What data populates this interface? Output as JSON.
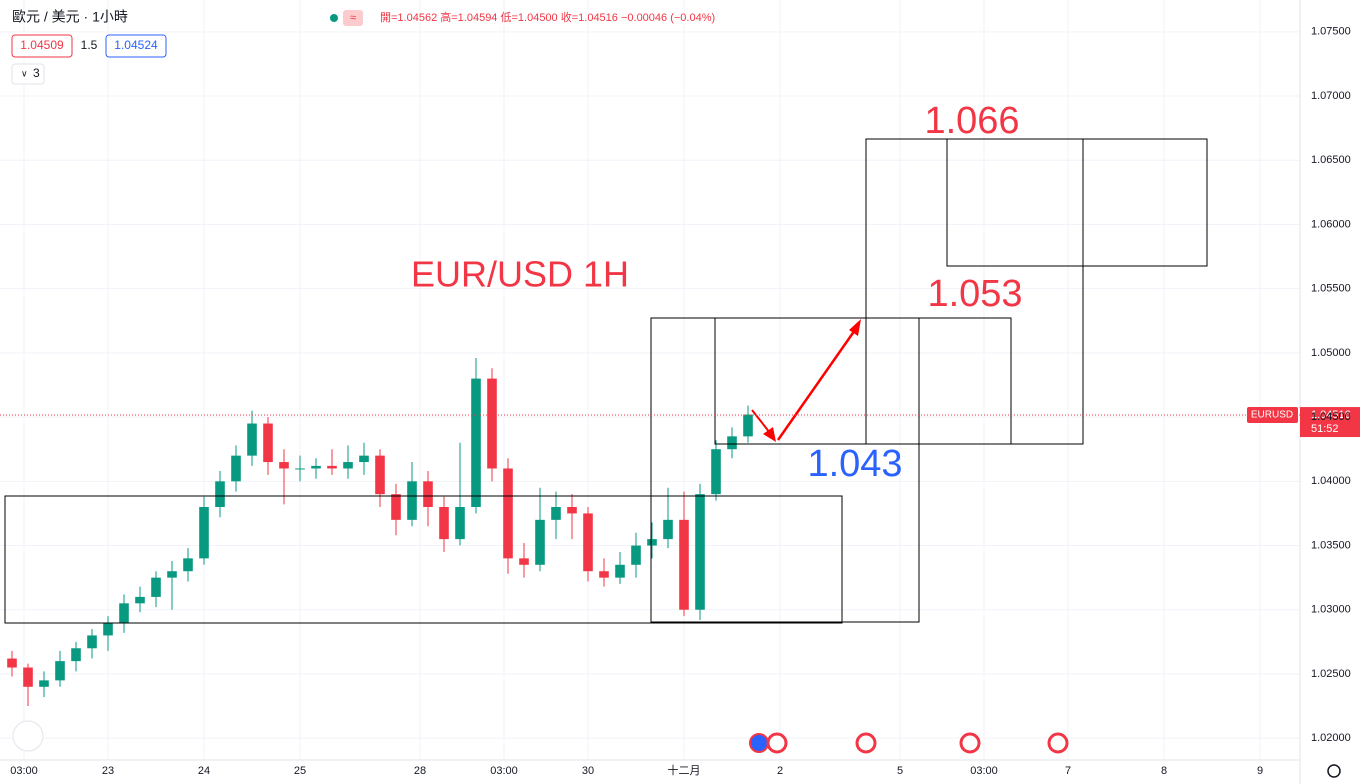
{
  "header": {
    "symbol": "歐元 / 美元 · 1小時",
    "ohlc": "開=1.04562 高=1.04594 低=1.04500 收=1.04516 −0.00046 (−0.04%)",
    "bid": "1.04509",
    "spread": "1.5",
    "ask": "1.04524",
    "indicators": "3"
  },
  "chart_data": {
    "type": "candlestick",
    "title": "EUR/USD 1H",
    "annotations": [
      {
        "text": "1.066",
        "color": "#f23645"
      },
      {
        "text": "1.053",
        "color": "#f23645"
      },
      {
        "text": "1.043",
        "color": "#2962ff"
      }
    ],
    "symbol_tag": "EURUSD",
    "last_price": 1.04516,
    "countdown": "51:52",
    "up_color": "#089981",
    "down_color": "#f23645",
    "x": [
      0,
      4,
      8,
      12,
      16,
      20,
      24,
      28,
      32,
      36,
      40,
      44,
      48,
      52,
      56,
      60,
      64,
      68,
      72,
      76,
      80,
      84,
      88,
      92,
      96,
      100,
      104,
      108,
      112,
      116,
      120,
      124,
      128,
      132,
      136,
      140,
      144,
      148,
      152,
      156,
      160,
      164,
      168,
      172,
      176,
      180,
      184
    ],
    "open": [
      1.0262,
      1.0255,
      1.024,
      1.0245,
      1.026,
      1.027,
      1.028,
      1.029,
      1.0305,
      1.031,
      1.0325,
      1.033,
      1.034,
      1.038,
      1.04,
      1.042,
      1.0445,
      1.0415,
      1.041,
      1.041,
      1.0412,
      1.041,
      1.0415,
      1.042,
      1.039,
      1.037,
      1.04,
      1.038,
      1.0355,
      1.038,
      1.048,
      1.041,
      1.034,
      1.0335,
      1.037,
      1.038,
      1.0375,
      1.033,
      1.0325,
      1.0335,
      1.035,
      1.0355,
      1.037,
      1.03,
      1.039,
      1.0425,
      1.0435
    ],
    "high": [
      1.0268,
      1.0258,
      1.0252,
      1.0268,
      1.0275,
      1.0285,
      1.0295,
      1.0312,
      1.0318,
      1.033,
      1.0338,
      1.0348,
      1.0388,
      1.0408,
      1.0428,
      1.0455,
      1.045,
      1.0425,
      1.042,
      1.0418,
      1.0425,
      1.0428,
      1.043,
      1.0425,
      1.0398,
      1.0415,
      1.0408,
      1.0388,
      1.043,
      1.0496,
      1.0488,
      1.0418,
      1.0352,
      1.0395,
      1.0392,
      1.039,
      1.038,
      1.034,
      1.0345,
      1.036,
      1.0368,
      1.0395,
      1.0392,
      1.0398,
      1.0432,
      1.0442,
      1.0459
    ],
    "low": [
      1.0248,
      1.0225,
      1.0232,
      1.024,
      1.0252,
      1.0262,
      1.0268,
      1.0282,
      1.0298,
      1.0302,
      1.03,
      1.0322,
      1.0335,
      1.0372,
      1.0392,
      1.0412,
      1.0405,
      1.0382,
      1.04,
      1.0402,
      1.0405,
      1.0402,
      1.0405,
      1.038,
      1.0358,
      1.0365,
      1.0365,
      1.0345,
      1.035,
      1.0375,
      1.04,
      1.0328,
      1.0325,
      1.033,
      1.0355,
      1.0355,
      1.0322,
      1.0318,
      1.032,
      1.0325,
      1.034,
      1.0348,
      1.0295,
      1.0292,
      1.0385,
      1.0418,
      1.043
    ],
    "close": [
      1.0255,
      1.024,
      1.0245,
      1.026,
      1.027,
      1.028,
      1.029,
      1.0305,
      1.031,
      1.0325,
      1.033,
      1.034,
      1.038,
      1.04,
      1.042,
      1.0445,
      1.0415,
      1.041,
      1.041,
      1.0412,
      1.041,
      1.0415,
      1.042,
      1.039,
      1.037,
      1.04,
      1.038,
      1.0355,
      1.038,
      1.048,
      1.041,
      1.034,
      1.0335,
      1.037,
      1.038,
      1.0375,
      1.033,
      1.0325,
      1.0335,
      1.035,
      1.0355,
      1.037,
      1.03,
      1.039,
      1.0425,
      1.0435,
      1.0452
    ],
    "xlim": [
      -3,
      322
    ],
    "xticks": [
      {
        "value": 3,
        "label": "03:00"
      },
      {
        "value": 24,
        "label": "23"
      },
      {
        "value": 48,
        "label": "24"
      },
      {
        "value": 72,
        "label": "25"
      },
      {
        "value": 102,
        "label": "28"
      },
      {
        "value": 123,
        "label": "03:00"
      },
      {
        "value": 144,
        "label": "30"
      },
      {
        "value": 168,
        "label": "十二月"
      },
      {
        "value": 192,
        "label": "2"
      },
      {
        "value": 222,
        "label": "5"
      },
      {
        "value": 243,
        "label": "03:00"
      },
      {
        "value": 264,
        "label": "7"
      },
      {
        "value": 288,
        "label": "8"
      },
      {
        "value": 312,
        "label": "9"
      }
    ],
    "ylim": [
      1.0183,
      1.0767
    ],
    "yticks": [
      {
        "value": 1.075,
        "label": "1.07500"
      },
      {
        "value": 1.07,
        "label": "1.07000"
      },
      {
        "value": 1.065,
        "label": "1.06500"
      },
      {
        "value": 1.06,
        "label": "1.06000"
      },
      {
        "value": 1.055,
        "label": "1.05500"
      },
      {
        "value": 1.05,
        "label": "1.05000"
      },
      {
        "value": 1.045,
        "label": "1.04500"
      },
      {
        "value": 1.04,
        "label": "1.04000"
      },
      {
        "value": 1.035,
        "label": "1.03500"
      },
      {
        "value": 1.03,
        "label": "1.03000"
      },
      {
        "value": 1.025,
        "label": "1.02500"
      },
      {
        "value": 1.02,
        "label": "1.02000"
      }
    ],
    "grid": true
  }
}
